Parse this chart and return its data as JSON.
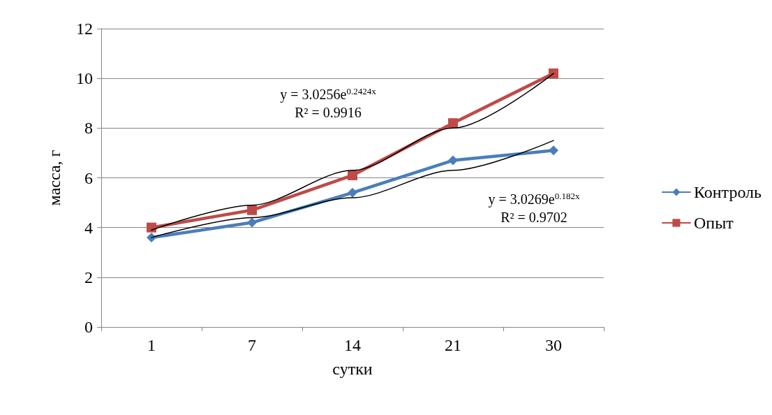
{
  "chart_data": {
    "type": "line",
    "xlabel": "сутки",
    "ylabel": "масса, г",
    "categories": [
      "1",
      "7",
      "14",
      "21",
      "30"
    ],
    "ylim": [
      0,
      12
    ],
    "yticks": [
      0,
      2,
      4,
      6,
      8,
      10,
      12
    ],
    "grid": "y",
    "legend": "right",
    "line_style": "solid",
    "series": [
      {
        "name": "Контроль",
        "color": "#4a7ebb",
        "marker": "diamond",
        "values": [
          3.6,
          4.2,
          5.4,
          6.7,
          7.1
        ]
      },
      {
        "name": "Опыт",
        "color": "#be4b48",
        "marker": "square",
        "values": [
          4.0,
          4.7,
          6.1,
          8.2,
          10.2
        ]
      },
      {
        "type": "line",
        "color": "#000000",
        "marker": "none",
        "x": [
          "1",
          "7",
          "14",
          "21",
          "30"
        ],
        "values": [
          3.9,
          4.9,
          6.3,
          8.0,
          10.2
        ]
      },
      {
        "type": "line",
        "color": "#000000",
        "marker": "none",
        "x": [
          "1",
          "7",
          "14",
          "21",
          "30"
        ],
        "values": [
          3.6,
          4.4,
          5.2,
          6.3,
          7.5
        ]
      }
    ],
    "annotations": [
      "y = 3.0256e$^{0.2424x}$\nR² = 0.9916",
      "y = 3.0269e$^{0.182x}$\nR² = 0.9702"
    ]
  }
}
